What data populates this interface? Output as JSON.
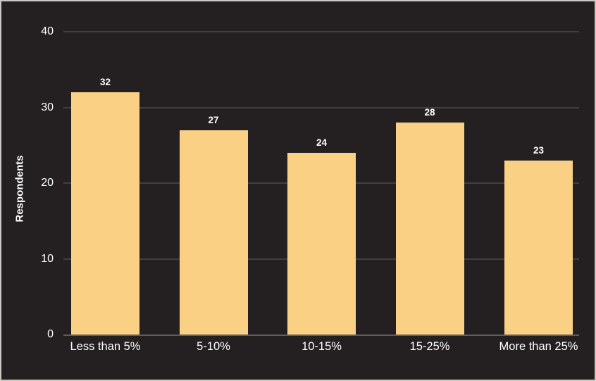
{
  "window": {
    "background_color": "#242021",
    "border_color": "#cbc7c2"
  },
  "chart_data": {
    "type": "bar",
    "title": "",
    "xlabel": "",
    "ylabel": "Respondents",
    "categories": [
      "Less than 5%",
      "5-10%",
      "10-15%",
      "15-25%",
      "More than 25%"
    ],
    "values": [
      32,
      27,
      24,
      28,
      23
    ],
    "value_labels": [
      "32",
      "27",
      "24",
      "28",
      "23"
    ],
    "ylim": [
      0,
      40
    ],
    "yticks": [
      0,
      10,
      20,
      30,
      40
    ],
    "ytick_labels": [
      "0",
      "10",
      "20",
      "30",
      "40"
    ],
    "grid": "horizontal",
    "legend_position": "none",
    "colors": {
      "bar_fill": "#fad184",
      "gridline": "#433f40",
      "axis_line": "#615d5e",
      "text": "#ffffff"
    }
  }
}
